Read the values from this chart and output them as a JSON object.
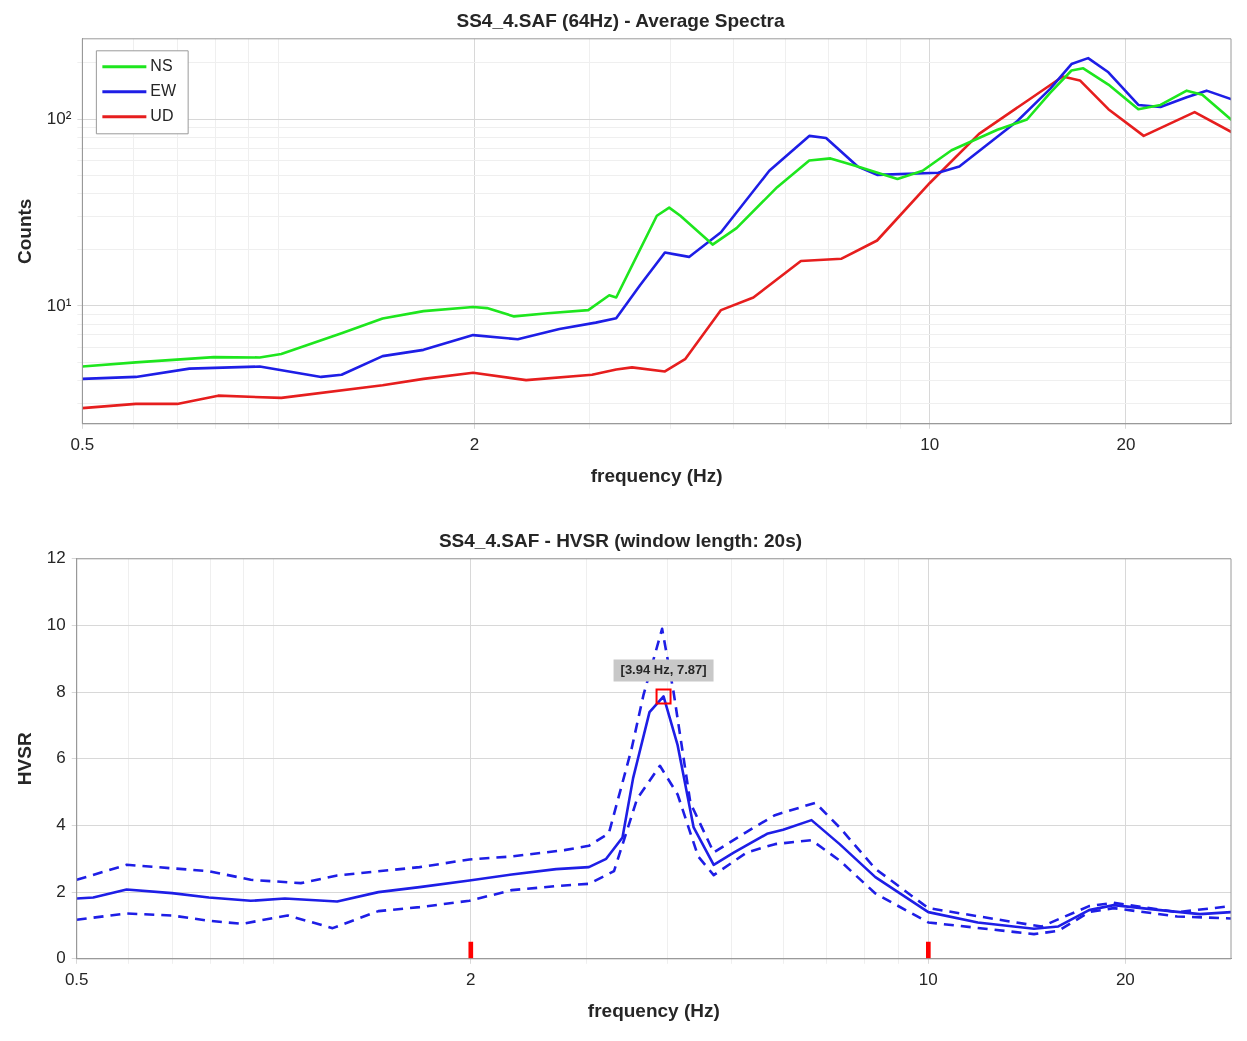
{
  "chart_data": [
    {
      "type": "line",
      "title": "SS4_4.SAF (64Hz) - Average Spectra",
      "xlabel": "frequency (Hz)",
      "ylabel": "Counts",
      "log": "xy",
      "xlim": [
        0.5,
        29
      ],
      "ylim": [
        2.34,
        269
      ],
      "xticks": [
        0.5,
        {
          "value": 0.6,
          "label": null
        },
        {
          "value": 0.7,
          "label": null
        },
        {
          "value": 0.8,
          "label": null
        },
        {
          "value": 0.9,
          "label": null
        },
        {
          "value": 1,
          "label": null
        },
        2,
        {
          "value": 3,
          "label": null
        },
        {
          "value": 4,
          "label": null
        },
        {
          "value": 5,
          "label": null
        },
        {
          "value": 6,
          "label": null
        },
        {
          "value": 7,
          "label": null
        },
        {
          "value": 8,
          "label": null
        },
        {
          "value": 9,
          "label": null
        },
        10,
        20
      ],
      "yticks": [
        {
          "value": 3,
          "label": null
        },
        {
          "value": 4,
          "label": null
        },
        {
          "value": 5,
          "label": null
        },
        {
          "value": 6,
          "label": null
        },
        {
          "value": 7,
          "label": null
        },
        {
          "value": 8,
          "label": null
        },
        {
          "value": 9,
          "label": null
        },
        {
          "value": 10,
          "label": "10¹"
        },
        {
          "value": 20,
          "label": null
        },
        {
          "value": 30,
          "label": null
        },
        {
          "value": 40,
          "label": null
        },
        {
          "value": 50,
          "label": null
        },
        {
          "value": 60,
          "label": null
        },
        {
          "value": 70,
          "label": null
        },
        {
          "value": 80,
          "label": null
        },
        {
          "value": 90,
          "label": null
        },
        {
          "value": 100,
          "label": "10²"
        },
        {
          "value": 200,
          "label": null
        }
      ],
      "grid": true,
      "legend": "top left",
      "series": [
        {
          "name": "NS",
          "color": "#1ee61e",
          "x": [
            0.5,
            0.604,
            0.796,
            0.936,
            1.01,
            1.25,
            1.445,
            1.67,
            1.99,
            2.09,
            2.3,
            2.59,
            2.99,
            3.22,
            3.3,
            3.81,
            3.98,
            4.14,
            4.64,
            5.05,
            5.83,
            6.53,
            7.04,
            7.75,
            8.92,
            9.75,
            10.8,
            12.7,
            14.1,
            15.3,
            16.5,
            17.2,
            18.8,
            20.9,
            22.6,
            24.8,
            26.2,
            29
          ],
          "values": [
            4.74,
            4.99,
            5.32,
            5.3,
            5.53,
            7.15,
            8.57,
            9.38,
            9.87,
            9.74,
            8.79,
            9.14,
            9.5,
            11.4,
            11.1,
            30.4,
            33.6,
            30.4,
            21.3,
            26.1,
            43.2,
            60,
            61.6,
            55.7,
            47.8,
            52.9,
            68.1,
            87.7,
            99.5,
            138,
            182,
            187,
            153,
            113,
            119,
            142,
            135,
            99.5
          ]
        },
        {
          "name": "EW",
          "color": "#1e1ee6",
          "x": [
            0.5,
            0.604,
            0.73,
            0.936,
            1.163,
            1.25,
            1.445,
            1.67,
            1.99,
            2.33,
            2.7,
            3.07,
            3.3,
            3.59,
            3.92,
            4.27,
            4.78,
            5.67,
            6.53,
            6.93,
            7.75,
            8.3,
            10.3,
            11.1,
            13.6,
            15.3,
            16.5,
            17.5,
            18.8,
            20.9,
            22.6,
            24.8,
            26.6,
            29
          ],
          "values": [
            4.07,
            4.17,
            4.62,
            4.74,
            4.17,
            4.28,
            5.39,
            5.82,
            6.98,
            6.63,
            7.53,
            8.14,
            8.6,
            12.9,
            19.3,
            18.3,
            24.8,
            52.9,
            81.3,
            79.3,
            55.7,
            50.3,
            51.6,
            55.7,
            97,
            145,
            197,
            212,
            178,
            119,
            116,
            131,
            142,
            128
          ]
        },
        {
          "name": "UD",
          "color": "#e61e1e",
          "x": [
            0.5,
            0.604,
            0.699,
            0.808,
            1.01,
            1.445,
            1.67,
            1.99,
            2.4,
            3.03,
            3.3,
            3.49,
            3.92,
            4.21,
            4.78,
            5.36,
            6.34,
            7.32,
            8.3,
            10,
            11.9,
            14.1,
            16,
            17,
            18.8,
            21.3,
            25.5,
            29
          ],
          "values": [
            2.84,
            2.99,
            2.99,
            3.31,
            3.22,
            3.76,
            4.07,
            4.39,
            4.01,
            4.28,
            4.57,
            4.69,
            4.46,
            5.19,
            9.5,
            11.1,
            17.4,
            17.9,
            22.4,
            45.5,
            83.4,
            125,
            169,
            161,
            113,
            81.3,
            109,
            85.5
          ]
        }
      ]
    },
    {
      "type": "line",
      "title": "SS4_4.SAF - HVSR (window length: 20s)",
      "xlabel": "frequency (Hz)",
      "ylabel": "HVSR",
      "log": "x",
      "xlim": [
        0.5,
        29
      ],
      "ylim": [
        0,
        12
      ],
      "xticks": [
        0.5,
        {
          "value": 0.6,
          "label": null
        },
        {
          "value": 0.7,
          "label": null
        },
        {
          "value": 0.8,
          "label": null
        },
        {
          "value": 0.9,
          "label": null
        },
        {
          "value": 1,
          "label": null
        },
        2,
        {
          "value": 3,
          "label": null
        },
        {
          "value": 4,
          "label": null
        },
        {
          "value": 5,
          "label": null
        },
        {
          "value": 6,
          "label": null
        },
        {
          "value": 7,
          "label": null
        },
        {
          "value": 8,
          "label": null
        },
        {
          "value": 9,
          "label": null
        },
        10,
        20
      ],
      "yticks": [
        0,
        2,
        4,
        6,
        8,
        10,
        12
      ],
      "grid": true,
      "annotations": [
        {
          "text": "[3.94 Hz, 7.87]",
          "x": 3.94,
          "y": 7.87
        }
      ],
      "series": [
        {
          "type": "bar",
          "color": "#ff0000",
          "x": [
            2,
            10
          ],
          "values": [
            0.5,
            0.5
          ]
        },
        {
          "color": "#1e1ee6",
          "line_style": "solid",
          "x": [
            0.5,
            0.53,
            0.596,
            0.699,
            0.796,
            0.922,
            1.04,
            1.25,
            1.445,
            1.67,
            1.99,
            2.31,
            2.7,
            3.03,
            3.22,
            3.41,
            3.54,
            3.75,
            3.94,
            4.14,
            4.38,
            4.7,
            5.05,
            5.67,
            6,
            6.63,
            7.32,
            8.3,
            10,
            11.9,
            14.5,
            15.8,
            17.6,
            19.2,
            22.6,
            26,
            29
          ],
          "values": [
            1.81,
            1.84,
            2.08,
            1.97,
            1.84,
            1.74,
            1.81,
            1.72,
            2,
            2.15,
            2.35,
            2.53,
            2.69,
            2.75,
            3,
            3.64,
            5.42,
            7.4,
            7.87,
            6.41,
            3.94,
            2.82,
            3.19,
            3.75,
            3.87,
            4.16,
            3.44,
            2.45,
            1.4,
            1.09,
            0.9,
            0.97,
            1.46,
            1.61,
            1.46,
            1.34,
            1.4
          ]
        },
        {
          "color": "#1e1ee6",
          "line_style": "dashed",
          "x": [
            0.5,
            0.596,
            0.796,
            0.922,
            1.1,
            1.25,
            1.67,
            1.99,
            2.31,
            2.78,
            3.03,
            3.25,
            3.52,
            3.67,
            3.92,
            4.08,
            4.33,
            4.7,
            5.28,
            5.83,
            6.72,
            7.32,
            8.3,
            10,
            13.6,
            14.9,
            17.6,
            19.2,
            24,
            29
          ],
          "values": [
            2.37,
            2.82,
            2.63,
            2.37,
            2.27,
            2.5,
            2.75,
            2.98,
            3.07,
            3.26,
            3.39,
            3.76,
            6.29,
            7.9,
            9.9,
            8.02,
            4.68,
            3.19,
            3.81,
            4.31,
            4.68,
            3.94,
            2.7,
            1.52,
            1.09,
            0.97,
            1.58,
            1.68,
            1.4,
            1.58
          ]
        },
        {
          "color": "#1e1ee6",
          "line_style": "dashed",
          "x": [
            0.5,
            0.596,
            0.699,
            0.796,
            0.895,
            1.05,
            1.23,
            1.445,
            1.67,
            1.99,
            2.31,
            2.7,
            3.03,
            3.31,
            3.59,
            3.89,
            4.14,
            4.45,
            4.7,
            5.28,
            5.83,
            6.63,
            7.32,
            8.3,
            10,
            14.5,
            15.8,
            17.6,
            19.2,
            24,
            29
          ],
          "values": [
            1.17,
            1.36,
            1.3,
            1.14,
            1.05,
            1.3,
            0.92,
            1.43,
            1.55,
            1.74,
            2.06,
            2.18,
            2.25,
            2.63,
            4.8,
            5.79,
            4.93,
            3.07,
            2.51,
            3.19,
            3.44,
            3.56,
            2.95,
            1.96,
            1.09,
            0.74,
            0.84,
            1.4,
            1.52,
            1.27,
            1.21
          ]
        }
      ]
    }
  ]
}
